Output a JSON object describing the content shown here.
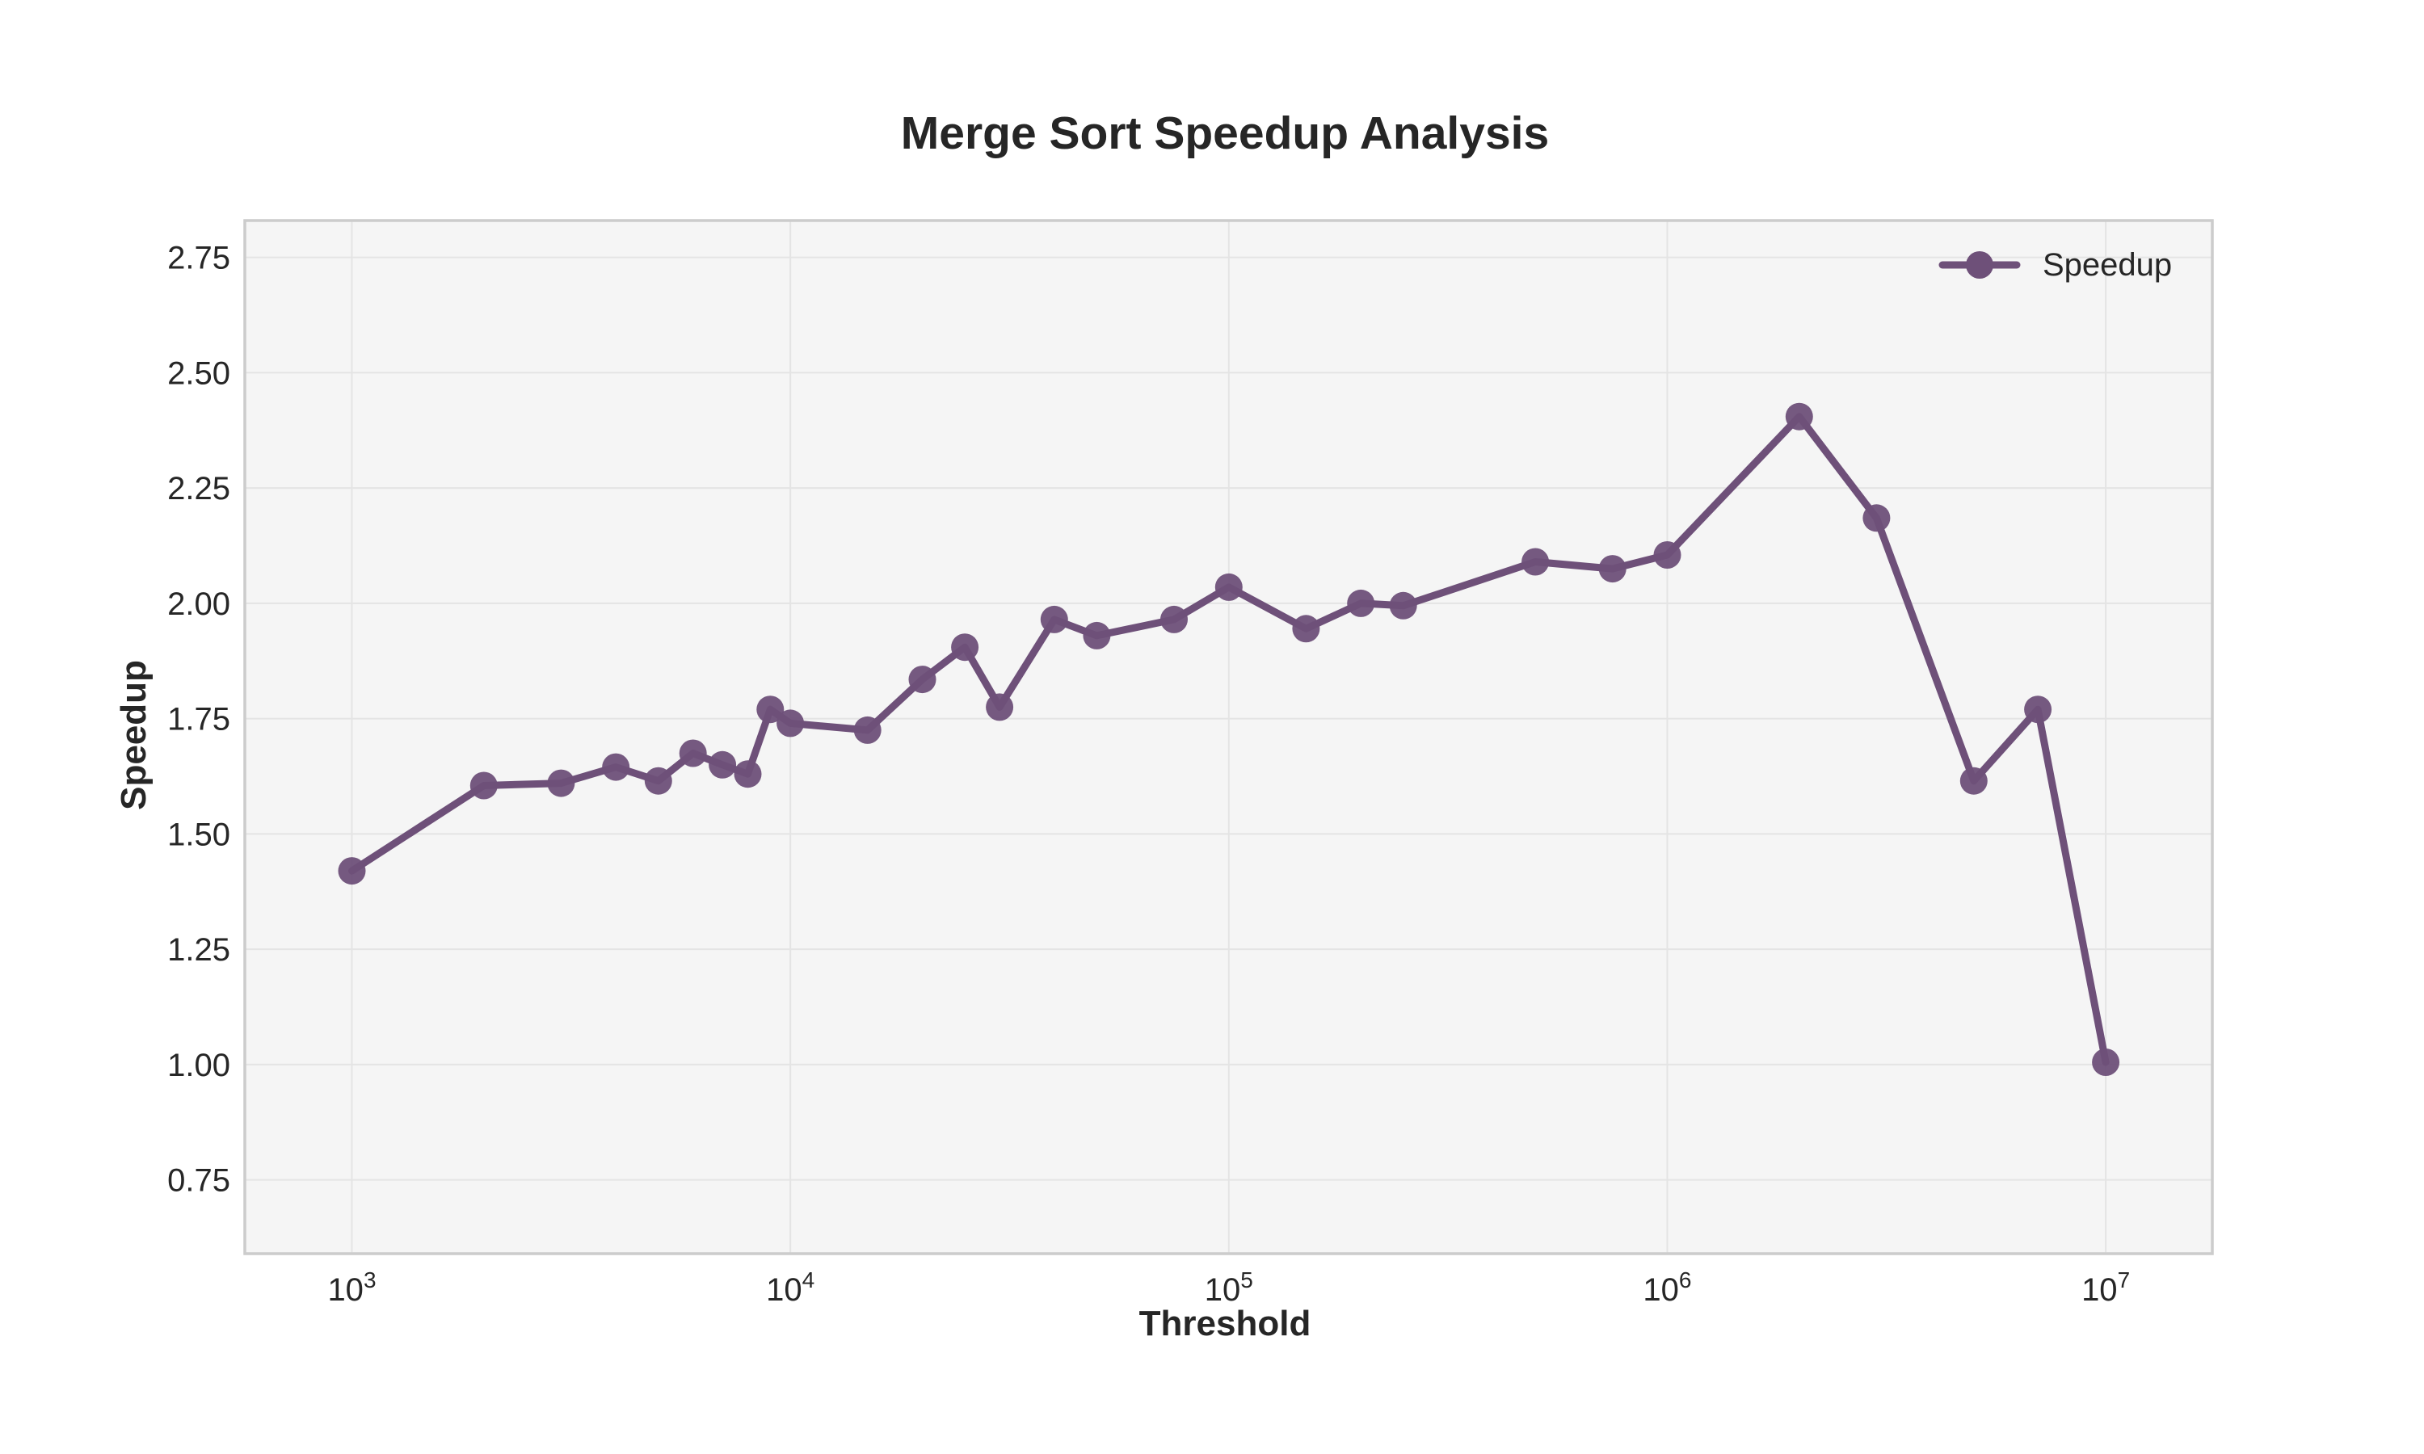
{
  "chart_data": {
    "type": "line",
    "title": "Merge Sort Speedup Analysis",
    "xlabel": "Threshold",
    "ylabel": "Speedup",
    "xscale": "log",
    "x_tick_values": [
      1000,
      10000,
      100000,
      1000000,
      10000000
    ],
    "x_tick_labels": [
      {
        "base": "10",
        "exp": "3"
      },
      {
        "base": "10",
        "exp": "4"
      },
      {
        "base": "10",
        "exp": "5"
      },
      {
        "base": "10",
        "exp": "6"
      },
      {
        "base": "10",
        "exp": "7"
      }
    ],
    "y_ticks": [
      "0.75",
      "1.00",
      "1.25",
      "1.50",
      "1.75",
      "2.00",
      "2.25",
      "2.50",
      "2.75"
    ],
    "xlim": [
      570,
      17500000
    ],
    "ylim": [
      0.59,
      2.83
    ],
    "grid": true,
    "legend_position": "top-right",
    "series": [
      {
        "name": "Speedup",
        "color": "#6e5079",
        "marker": "circle",
        "x": [
          1000,
          2000,
          3000,
          4000,
          5000,
          6000,
          7000,
          8000,
          9000,
          10000,
          15000,
          20000,
          25000,
          30000,
          40000,
          50000,
          75000,
          100000,
          150000,
          200000,
          250000,
          500000,
          750000,
          1000000,
          2000000,
          3000000,
          5000000,
          7000000,
          10000000
        ],
        "y": [
          1.42,
          1.605,
          1.61,
          1.645,
          1.615,
          1.675,
          1.65,
          1.63,
          1.77,
          1.74,
          1.725,
          1.835,
          1.905,
          1.775,
          1.965,
          1.93,
          1.965,
          2.035,
          1.945,
          2.0,
          1.995,
          2.09,
          2.075,
          2.105,
          2.405,
          2.185,
          1.615,
          1.77,
          1.005
        ]
      }
    ]
  }
}
